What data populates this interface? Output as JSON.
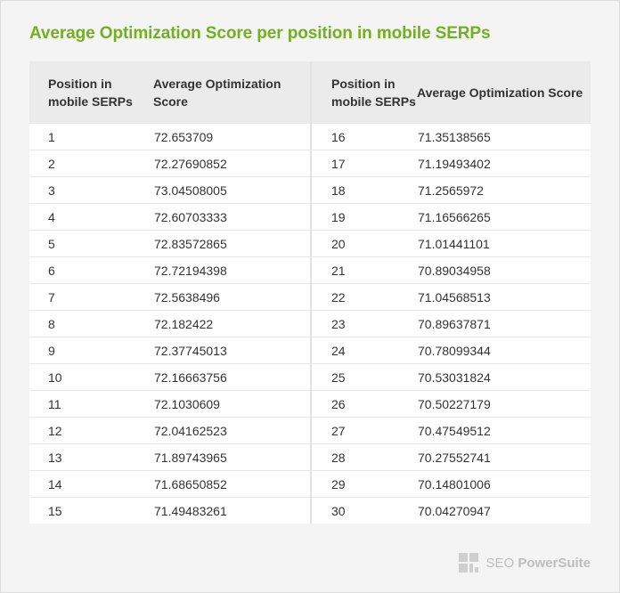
{
  "title": "Average Optimization Score per position in mobile SERPs",
  "columns": {
    "position": "Position in mobile SERPs",
    "score": "Average Optimization Score"
  },
  "left_rows": [
    [
      "1",
      "72.653709"
    ],
    [
      "2",
      "72.27690852"
    ],
    [
      "3",
      "73.04508005"
    ],
    [
      "4",
      "72.60703333"
    ],
    [
      "5",
      "72.83572865"
    ],
    [
      "6",
      "72.72194398"
    ],
    [
      "7",
      "72.5638496"
    ],
    [
      "8",
      "72.182422"
    ],
    [
      "9",
      "72.37745013"
    ],
    [
      "10",
      "72.16663756"
    ],
    [
      "11",
      "72.1030609"
    ],
    [
      "12",
      "72.04162523"
    ],
    [
      "13",
      "71.89743965"
    ],
    [
      "14",
      "71.68650852"
    ],
    [
      "15",
      "71.49483261"
    ]
  ],
  "right_rows": [
    [
      "16",
      "71.35138565"
    ],
    [
      "17",
      "71.19493402"
    ],
    [
      "18",
      "71.2565972"
    ],
    [
      "19",
      "71.16566265"
    ],
    [
      "20",
      "71.01441101"
    ],
    [
      "21",
      "70.89034958"
    ],
    [
      "22",
      "71.04568513"
    ],
    [
      "23",
      "70.89637871"
    ],
    [
      "24",
      "70.78099344"
    ],
    [
      "25",
      "70.53031824"
    ],
    [
      "26",
      "70.50227179"
    ],
    [
      "27",
      "70.47549512"
    ],
    [
      "28",
      "70.27552741"
    ],
    [
      "29",
      "70.14801006"
    ],
    [
      "30",
      "70.04270947"
    ]
  ],
  "logo": {
    "icon": "seo-powersuite-logo-icon",
    "text_light": "SEO ",
    "text_bold": "PowerSuite"
  },
  "colors": {
    "title": "#72b01d",
    "header_bg": "#ebebeb",
    "page_bg": "#f4f4f4"
  }
}
